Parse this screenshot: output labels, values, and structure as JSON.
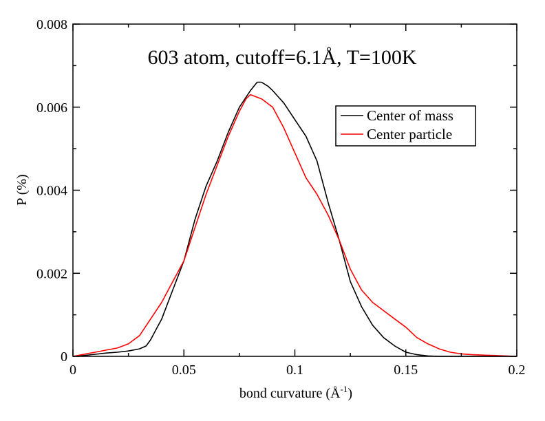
{
  "chart_data": {
    "type": "line",
    "title": "603 atom, cutoff=6.1Å, T=100K",
    "xlabel": "bond curvature (Å",
    "xlabel_superscript": "-1",
    "xlabel_suffix": ")",
    "ylabel": "P (%)",
    "xlim": [
      0,
      0.2
    ],
    "ylim": [
      0,
      0.008
    ],
    "x_ticks": [
      0,
      0.05,
      0.1,
      0.15,
      0.2
    ],
    "x_tick_labels": [
      "0",
      "0.05",
      "0.1",
      "0.15",
      "0.2"
    ],
    "y_ticks": [
      0,
      0.002,
      0.004,
      0.006,
      0.008
    ],
    "y_tick_labels": [
      "0",
      "0.002",
      "0.004",
      "0.006",
      "0.008"
    ],
    "grid": false,
    "legend_position": "top-right",
    "series": [
      {
        "name": "Center of mass",
        "color": "#000000",
        "x": [
          0,
          0.005,
          0.01,
          0.015,
          0.02,
          0.025,
          0.03,
          0.033,
          0.035,
          0.038,
          0.04,
          0.045,
          0.05,
          0.055,
          0.06,
          0.065,
          0.07,
          0.075,
          0.08,
          0.083,
          0.085,
          0.088,
          0.09,
          0.095,
          0.1,
          0.105,
          0.11,
          0.115,
          0.12,
          0.125,
          0.13,
          0.135,
          0.14,
          0.145,
          0.15,
          0.155,
          0.16,
          0.165,
          0.17,
          0.18,
          0.19,
          0.2
        ],
        "y": [
          0,
          2e-05,
          5e-05,
          8e-05,
          0.0001,
          0.00013,
          0.00018,
          0.00025,
          0.0004,
          0.0007,
          0.0009,
          0.0016,
          0.0023,
          0.0033,
          0.0041,
          0.0047,
          0.0054,
          0.006,
          0.0064,
          0.0066,
          0.0066,
          0.0065,
          0.0064,
          0.0061,
          0.0057,
          0.0053,
          0.0047,
          0.0037,
          0.0028,
          0.0018,
          0.0012,
          0.00075,
          0.00045,
          0.00025,
          0.0001,
          4e-05,
          1e-05,
          0,
          0,
          0,
          0,
          0
        ]
      },
      {
        "name": "Center particle",
        "color": "#ff0000",
        "x": [
          0,
          0.005,
          0.01,
          0.015,
          0.02,
          0.025,
          0.03,
          0.035,
          0.04,
          0.045,
          0.05,
          0.055,
          0.06,
          0.065,
          0.07,
          0.075,
          0.078,
          0.08,
          0.085,
          0.09,
          0.095,
          0.1,
          0.105,
          0.11,
          0.115,
          0.12,
          0.125,
          0.13,
          0.135,
          0.14,
          0.145,
          0.15,
          0.155,
          0.16,
          0.165,
          0.17,
          0.175,
          0.18,
          0.185,
          0.19,
          0.195,
          0.2
        ],
        "y": [
          0,
          5e-05,
          0.0001,
          0.00015,
          0.0002,
          0.0003,
          0.0005,
          0.0009,
          0.0013,
          0.0018,
          0.0023,
          0.0031,
          0.0039,
          0.0046,
          0.0053,
          0.0059,
          0.0062,
          0.0063,
          0.0062,
          0.006,
          0.0055,
          0.0049,
          0.0043,
          0.0039,
          0.0034,
          0.0028,
          0.0021,
          0.0016,
          0.0013,
          0.0011,
          0.0009,
          0.0007,
          0.00045,
          0.0003,
          0.00018,
          0.0001,
          6e-05,
          4e-05,
          3e-05,
          2e-05,
          1e-05,
          0
        ]
      }
    ]
  }
}
